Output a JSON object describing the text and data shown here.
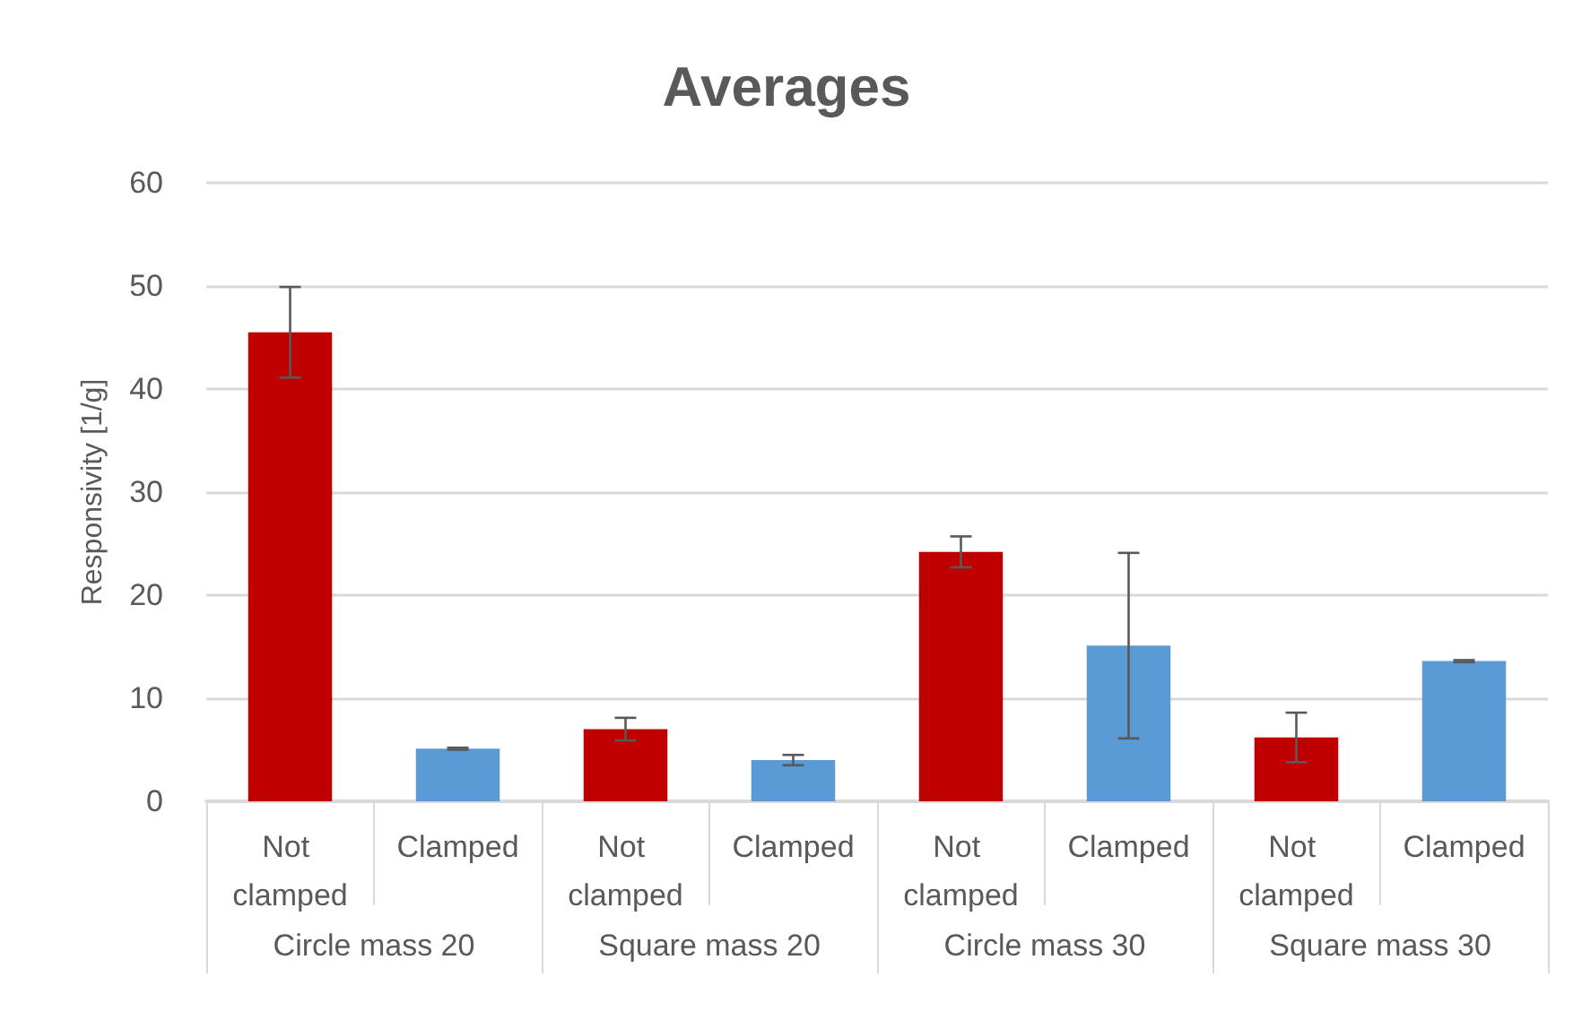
{
  "chart_data": {
    "type": "bar",
    "title": "Averages",
    "ylabel": "Responsivity [1/g]",
    "categories": [
      "Not clamped",
      "Clamped",
      "Not clamped",
      "Clamped",
      "Not clamped",
      "Clamped",
      "Not clamped",
      "Clamped"
    ],
    "values": [
      45.5,
      5.1,
      7.0,
      4.0,
      24.2,
      15.1,
      6.2,
      13.6
    ],
    "errors": [
      4.4,
      0.1,
      1.1,
      0.5,
      1.5,
      9.0,
      2.4,
      0.1
    ],
    "colors": [
      "#c00000",
      "#5b9bd5",
      "#c00000",
      "#5b9bd5",
      "#c00000",
      "#5b9bd5",
      "#c00000",
      "#5b9bd5"
    ],
    "annotations": [
      "Circle mass 20",
      "Square mass 20",
      "Circle mass 30",
      "Square mass 30"
    ],
    "ylim": [
      0,
      60
    ],
    "yticks": [
      0,
      10,
      20,
      30,
      40,
      50,
      60
    ],
    "grid": true
  }
}
